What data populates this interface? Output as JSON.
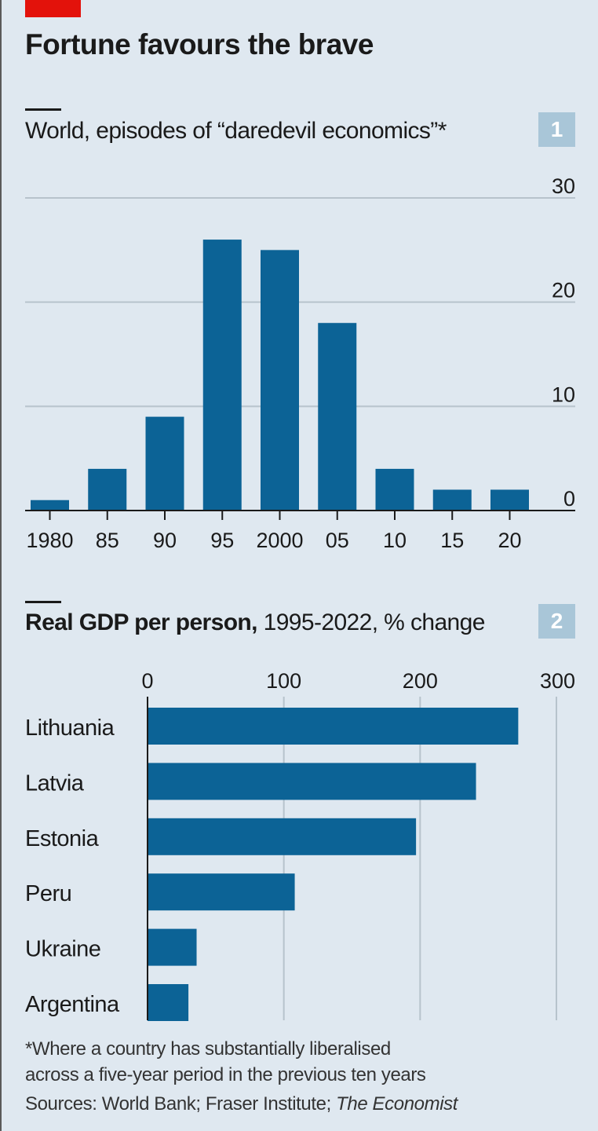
{
  "headline": "Fortune favours the brave",
  "colors": {
    "bar": "#0c6396",
    "grid": "#b7c3cc",
    "accent_red": "#e3120b",
    "badge": "#a9c6d8",
    "background": "#dfe8f0"
  },
  "chart_data": [
    {
      "type": "bar",
      "title": "World, episodes of “daredevil economics”*",
      "badge": "1",
      "categories": [
        "1980",
        "85",
        "90",
        "95",
        "2000",
        "05",
        "10",
        "15",
        "20"
      ],
      "values": [
        1,
        4,
        9,
        26,
        25,
        18,
        4,
        2,
        2
      ],
      "ylim": [
        0,
        30
      ],
      "yticks": [
        "0",
        "10",
        "20",
        "30"
      ],
      "ytick_values": [
        0,
        10,
        20,
        30
      ],
      "ytick_position": "right",
      "grid": true
    },
    {
      "type": "bar",
      "orientation": "horizontal",
      "title_bold": "Real GDP per person,",
      "title_rest": " 1995-2022, % change",
      "badge": "2",
      "categories": [
        "Lithuania",
        "Latvia",
        "Estonia",
        "Peru",
        "Ukraine",
        "Argentina"
      ],
      "values": [
        272,
        241,
        197,
        108,
        36,
        30
      ],
      "xlim": [
        0,
        300
      ],
      "xticks": [
        "0",
        "100",
        "200",
        "300"
      ],
      "xtick_values": [
        0,
        100,
        200,
        300
      ],
      "xtick_position": "top",
      "grid": true
    }
  ],
  "footnotes": {
    "line1": "*Where a country has substantially liberalised",
    "line2": "across a five-year period in the previous ten years",
    "sources": "Sources: World Bank; Fraser Institute; ",
    "sources_italic": "The Economist"
  }
}
